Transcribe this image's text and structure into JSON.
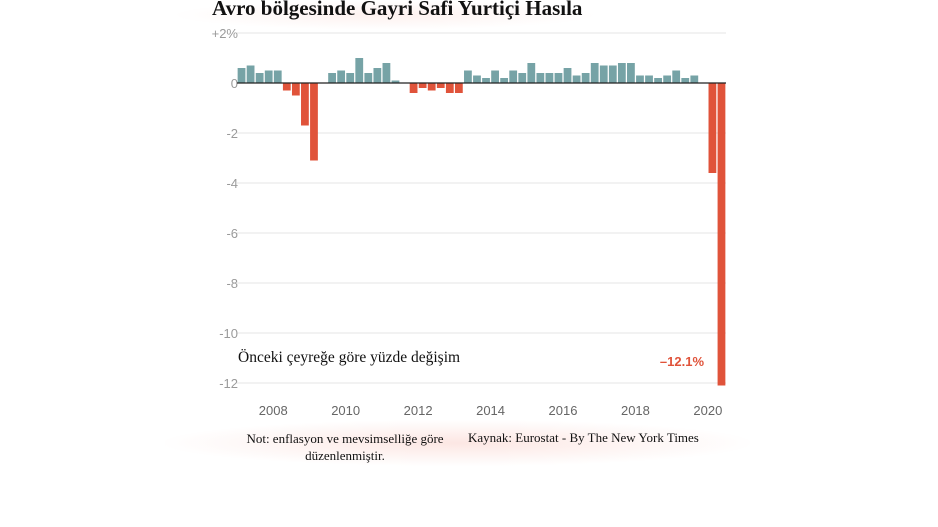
{
  "chart_data": {
    "type": "bar",
    "title": "Avro bölgesinde Gayri Safi Yurtiçi Hasıla",
    "subtitle": "Önceki çeyreğe göre yüzde değişim",
    "ylim": [
      -12,
      2
    ],
    "yticks": [
      {
        "value": 2,
        "label": "+2%"
      },
      {
        "value": 0,
        "label": "0"
      },
      {
        "value": -2,
        "label": "-2"
      },
      {
        "value": -4,
        "label": "-4"
      },
      {
        "value": -6,
        "label": "-6"
      },
      {
        "value": -8,
        "label": "-8"
      },
      {
        "value": -10,
        "label": "-10"
      },
      {
        "value": -12,
        "label": "-12"
      }
    ],
    "xticks": [
      "2008",
      "2010",
      "2012",
      "2014",
      "2016",
      "2018",
      "2020"
    ],
    "grid": true,
    "positive_color": "#76a3a6",
    "negative_color": "#e0533a",
    "categories": [
      "2007-Q1",
      "2007-Q2",
      "2007-Q3",
      "2007-Q4",
      "2008-Q1",
      "2008-Q2",
      "2008-Q3",
      "2008-Q4",
      "2009-Q1",
      "2009-Q2",
      "2009-Q3",
      "2009-Q4",
      "2010-Q1",
      "2010-Q2",
      "2010-Q3",
      "2010-Q4",
      "2011-Q1",
      "2011-Q2",
      "2011-Q3",
      "2011-Q4",
      "2012-Q1",
      "2012-Q2",
      "2012-Q3",
      "2012-Q4",
      "2013-Q1",
      "2013-Q2",
      "2013-Q3",
      "2013-Q4",
      "2014-Q1",
      "2014-Q2",
      "2014-Q3",
      "2014-Q4",
      "2015-Q1",
      "2015-Q2",
      "2015-Q3",
      "2015-Q4",
      "2016-Q1",
      "2016-Q2",
      "2016-Q3",
      "2016-Q4",
      "2017-Q1",
      "2017-Q2",
      "2017-Q3",
      "2017-Q4",
      "2018-Q1",
      "2018-Q2",
      "2018-Q3",
      "2018-Q4",
      "2019-Q1",
      "2019-Q2",
      "2019-Q3",
      "2019-Q4",
      "2020-Q1",
      "2020-Q2"
    ],
    "values": [
      0.6,
      0.7,
      0.4,
      0.5,
      0.5,
      -0.3,
      -0.5,
      -1.7,
      -3.1,
      0.0,
      0.4,
      0.5,
      0.4,
      1.0,
      0.4,
      0.6,
      0.8,
      0.1,
      0.0,
      -0.4,
      -0.2,
      -0.3,
      -0.2,
      -0.4,
      -0.4,
      0.5,
      0.3,
      0.2,
      0.5,
      0.2,
      0.5,
      0.4,
      0.8,
      0.4,
      0.4,
      0.4,
      0.6,
      0.3,
      0.4,
      0.8,
      0.7,
      0.7,
      0.8,
      0.8,
      0.3,
      0.3,
      0.2,
      0.3,
      0.5,
      0.2,
      0.3,
      0.0,
      -3.6,
      -12.1
    ],
    "annotation": "–12.1%"
  },
  "footer": {
    "note": "Not: enflasyon ve mevsimselliğe göre düzenlenmiştir.",
    "source": "Kaynak: Eurostat - By The New York Times"
  }
}
